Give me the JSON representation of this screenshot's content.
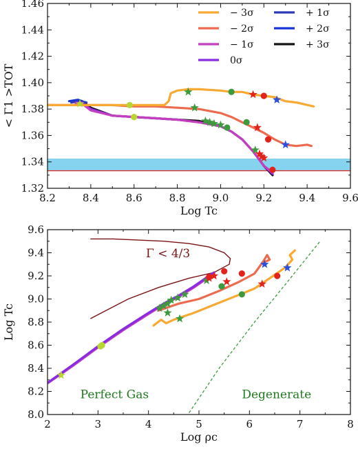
{
  "colors": {
    "m3": "#f7a932",
    "m2": "#ec6a4e",
    "m1": "#c43fbf",
    "z0": "#8a2be2",
    "p1": "#2a3ab8",
    "p2": "#1634d8",
    "p3": "#111111",
    "band": "#86d3ef",
    "threshold": "#e0312a",
    "dark_red": "#7a1212",
    "green_text": "#1d7a1d",
    "marker_green": "#3d9a3d",
    "marker_lime": "#b6d632",
    "marker_red": "#e2231a",
    "marker_blue": "#2a50e0"
  },
  "chart_data": [
    {
      "type": "line",
      "ylabel": "< Γ1 >TOT",
      "xlabel": "Log Tc",
      "xlim": [
        8.2,
        9.6
      ],
      "ylim": [
        1.32,
        1.46
      ],
      "xticks": [
        "8.2",
        "8.4",
        "8.6",
        "8.8",
        "9.0",
        "9.2",
        "9.4",
        "9.6"
      ],
      "yticks": [
        "1.32",
        "1.34",
        "1.36",
        "1.38",
        "1.40",
        "1.42",
        "1.44",
        "1.46"
      ],
      "legend": {
        "placement": "top-right",
        "entries": [
          {
            "label": "− 3σ",
            "color_key": "m3"
          },
          {
            "label": "− 2σ",
            "color_key": "m2"
          },
          {
            "label": "− 1σ",
            "color_key": "m1"
          },
          {
            "label": "0σ",
            "color_key": "z0"
          },
          {
            "label": "+ 1σ",
            "color_key": "p1"
          },
          {
            "label": "+ 2σ",
            "color_key": "p2"
          },
          {
            "label": "+ 3σ",
            "color_key": "p3"
          }
        ]
      },
      "band": {
        "y0": 1.3333,
        "y1": 1.3425
      },
      "threshold": 1.3333,
      "series": [
        {
          "key": "p3",
          "x": [
            8.33,
            8.36,
            8.4,
            8.5,
            8.6,
            8.7,
            8.8,
            8.9,
            9.0,
            9.05,
            9.1,
            9.15,
            9.2,
            9.24
          ],
          "y": [
            1.386,
            1.386,
            1.381,
            1.375,
            1.374,
            1.373,
            1.372,
            1.371,
            1.367,
            1.363,
            1.357,
            1.348,
            1.337,
            1.33
          ]
        },
        {
          "key": "p2",
          "x": [
            8.3,
            8.34,
            8.36
          ],
          "y": [
            1.386,
            1.387,
            1.386
          ]
        },
        {
          "key": "p1",
          "x": [
            8.31,
            8.35,
            8.38
          ],
          "y": [
            1.385,
            1.386,
            1.385
          ]
        },
        {
          "key": "z0",
          "x": [
            8.33,
            8.36,
            8.4,
            8.5,
            8.6,
            8.7,
            8.8,
            8.9,
            9.0,
            9.05,
            9.1,
            9.15,
            9.2,
            9.24
          ],
          "y": [
            1.385,
            1.385,
            1.38,
            1.375,
            1.374,
            1.373,
            1.372,
            1.37,
            1.367,
            1.363,
            1.357,
            1.348,
            1.337,
            1.331
          ]
        },
        {
          "key": "m1",
          "x": [
            8.33,
            8.36,
            8.4,
            8.5,
            8.6,
            8.7,
            8.8,
            8.9,
            9.0,
            9.05,
            9.1,
            9.15,
            9.2,
            9.24
          ],
          "y": [
            1.384,
            1.384,
            1.379,
            1.375,
            1.374,
            1.373,
            1.372,
            1.37,
            1.367,
            1.363,
            1.357,
            1.348,
            1.337,
            1.332
          ]
        },
        {
          "key": "m2",
          "x": [
            8.2,
            8.3,
            8.4,
            8.5,
            8.6,
            8.7,
            8.8,
            8.9,
            9.0,
            9.05,
            9.1,
            9.15,
            9.2,
            9.25,
            9.3,
            9.35,
            9.4,
            9.42
          ],
          "y": [
            1.383,
            1.383,
            1.383,
            1.383,
            1.382,
            1.382,
            1.381,
            1.38,
            1.377,
            1.374,
            1.37,
            1.366,
            1.362,
            1.357,
            1.353,
            1.352,
            1.353,
            1.352
          ]
        },
        {
          "key": "m3",
          "x": [
            8.2,
            8.3,
            8.4,
            8.5,
            8.6,
            8.7,
            8.74,
            8.76,
            8.77,
            8.8,
            8.85,
            8.9,
            9.0,
            9.05,
            9.1,
            9.15,
            9.2,
            9.25,
            9.3,
            9.35,
            9.43
          ],
          "y": [
            1.383,
            1.383,
            1.383,
            1.383,
            1.383,
            1.383,
            1.383,
            1.386,
            1.392,
            1.394,
            1.395,
            1.395,
            1.394,
            1.393,
            1.393,
            1.391,
            1.39,
            1.389,
            1.386,
            1.385,
            1.382
          ]
        }
      ],
      "markers": [
        {
          "shape": "star",
          "color_key": "marker_green",
          "x": [
            8.85,
            8.88,
            8.93,
            8.95,
            8.97,
            9.0,
            9.16
          ],
          "y": [
            1.393,
            1.381,
            1.371,
            1.37,
            1.369,
            1.368,
            1.349
          ]
        },
        {
          "shape": "circle",
          "color_key": "marker_green",
          "x": [
            9.05,
            9.12,
            9.03
          ],
          "y": [
            1.393,
            1.37,
            1.366
          ]
        },
        {
          "shape": "star",
          "color_key": "marker_lime",
          "x": [
            8.35
          ],
          "y": [
            1.384
          ]
        },
        {
          "shape": "circle",
          "color_key": "marker_lime",
          "x": [
            8.58,
            8.6
          ],
          "y": [
            1.383,
            1.374
          ]
        },
        {
          "shape": "star",
          "color_key": "marker_red",
          "x": [
            9.15,
            9.17,
            9.18,
            9.19,
            9.2
          ],
          "y": [
            1.391,
            1.366,
            1.346,
            1.344,
            1.343
          ]
        },
        {
          "shape": "circle",
          "color_key": "marker_red",
          "x": [
            9.2,
            9.22,
            9.24
          ],
          "y": [
            1.39,
            1.357,
            1.334
          ]
        },
        {
          "shape": "star",
          "color_key": "marker_blue",
          "x": [
            9.26,
            9.3
          ],
          "y": [
            1.387,
            1.353
          ]
        }
      ]
    },
    {
      "type": "line",
      "ylabel": "Log Tc",
      "xlabel": "Log ρc",
      "xlim": [
        2,
        8
      ],
      "ylim": [
        8.0,
        9.6
      ],
      "xticks": [
        "2",
        "3",
        "4",
        "5",
        "6",
        "7",
        "8"
      ],
      "yticks": [
        "8.0",
        "8.2",
        "8.4",
        "8.6",
        "8.8",
        "9.0",
        "9.2",
        "9.4",
        "9.6"
      ],
      "annotations": [
        {
          "text": "Γ < 4/3",
          "x": 3.95,
          "y": 9.36,
          "color_key": "dark_red"
        },
        {
          "text": "Perfect Gas",
          "x": 2.65,
          "y": 8.14,
          "color_key": "green_text"
        },
        {
          "text": "Degenerate",
          "x": 5.85,
          "y": 8.14,
          "color_key": "green_text"
        }
      ],
      "gamma_boundary": {
        "color_key": "dark_red",
        "x": [
          2.85,
          3.3,
          3.8,
          4.3,
          4.8,
          5.2,
          5.5,
          5.62,
          5.6,
          5.3,
          4.8,
          4.2,
          3.6,
          2.85
        ],
        "y": [
          9.52,
          9.52,
          9.51,
          9.5,
          9.48,
          9.45,
          9.4,
          9.35,
          9.3,
          9.23,
          9.18,
          9.1,
          9.0,
          8.83
        ]
      },
      "degenerate_line": {
        "color_key": "marker_green",
        "x": [
          4.75,
          5.4,
          6.1,
          6.7,
          7.4
        ],
        "y": [
          7.98,
          8.4,
          8.8,
          9.12,
          9.5
        ]
      },
      "series": [
        {
          "key": "m1",
          "x": [
            2.0,
            2.5,
            3.0,
            3.5,
            4.0,
            4.3,
            4.6,
            4.9,
            5.1,
            5.3
          ],
          "y": [
            8.27,
            8.42,
            8.58,
            8.73,
            8.87,
            8.95,
            9.02,
            9.1,
            9.16,
            9.22
          ]
        },
        {
          "key": "z0",
          "x": [
            2.02,
            2.5,
            3.0,
            3.5,
            4.0,
            4.3,
            4.6,
            4.9,
            5.1,
            5.3
          ],
          "y": [
            8.28,
            8.43,
            8.59,
            8.74,
            8.88,
            8.96,
            9.03,
            9.11,
            9.17,
            9.23
          ]
        },
        {
          "key": "m2",
          "x": [
            4.2,
            4.4,
            4.6,
            5.0,
            5.4,
            5.8,
            6.1,
            6.2,
            6.28,
            6.35,
            6.4,
            6.3
          ],
          "y": [
            8.9,
            8.93,
            8.96,
            9.0,
            9.07,
            9.15,
            9.22,
            9.28,
            9.33,
            9.38,
            9.34,
            9.32
          ]
        },
        {
          "key": "m3",
          "x": [
            4.1,
            4.25,
            4.35,
            4.5,
            4.9,
            5.3,
            5.7,
            6.1,
            6.4,
            6.7,
            6.85,
            6.8,
            6.9
          ],
          "y": [
            8.77,
            8.82,
            8.79,
            8.82,
            8.88,
            8.95,
            9.02,
            9.09,
            9.18,
            9.27,
            9.34,
            9.38,
            9.42
          ]
        }
      ],
      "markers": [
        {
          "shape": "star",
          "color_key": "marker_green",
          "x": [
            4.22,
            4.3,
            4.38,
            4.45,
            4.58,
            4.72,
            4.38,
            4.62,
            5.15
          ],
          "y": [
            8.92,
            8.94,
            8.96,
            8.99,
            9.01,
            9.04,
            8.88,
            8.83,
            9.16
          ]
        },
        {
          "shape": "circle",
          "color_key": "marker_green",
          "x": [
            5.45,
            5.85
          ],
          "y": [
            9.11,
            9.04
          ]
        },
        {
          "shape": "star",
          "color_key": "marker_lime",
          "x": [
            2.27
          ],
          "y": [
            8.34
          ]
        },
        {
          "shape": "circle",
          "color_key": "marker_lime",
          "x": [
            3.05,
            3.08
          ],
          "y": [
            8.59,
            8.6
          ]
        },
        {
          "shape": "star",
          "color_key": "marker_red",
          "x": [
            5.2,
            5.3,
            5.55,
            6.25
          ],
          "y": [
            9.18,
            9.2,
            9.15,
            9.13
          ]
        },
        {
          "shape": "circle",
          "color_key": "marker_red",
          "x": [
            5.2,
            5.5,
            5.85,
            6.55
          ],
          "y": [
            9.19,
            9.24,
            9.22,
            9.2
          ]
        },
        {
          "shape": "star",
          "color_key": "marker_blue",
          "x": [
            6.3,
            6.75
          ],
          "y": [
            9.3,
            9.27
          ]
        }
      ]
    }
  ]
}
